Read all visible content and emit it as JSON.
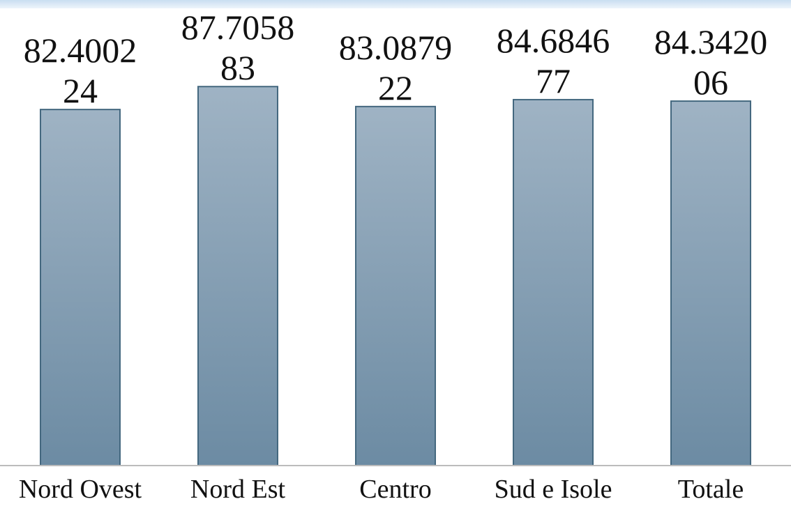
{
  "chart_data": {
    "type": "bar",
    "categories": [
      "Nord Ovest",
      "Nord Est",
      "Centro",
      "Sud e Isole",
      "Totale"
    ],
    "values": [
      82.400224,
      87.705883,
      83.087922,
      84.684677,
      84.342006
    ],
    "value_labels": [
      [
        "82.4002",
        "24"
      ],
      [
        "87.7058",
        "83"
      ],
      [
        "83.0879",
        "22"
      ],
      [
        "84.6846",
        "77"
      ],
      [
        "84.3420",
        "06"
      ]
    ],
    "ylim": [
      0,
      104.0
    ],
    "grid": false,
    "legend": "none",
    "colors": {
      "bar_top": "#9fb3c4",
      "bar_bottom": "#6c8ba3",
      "bar_edge": "#44687f"
    }
  }
}
